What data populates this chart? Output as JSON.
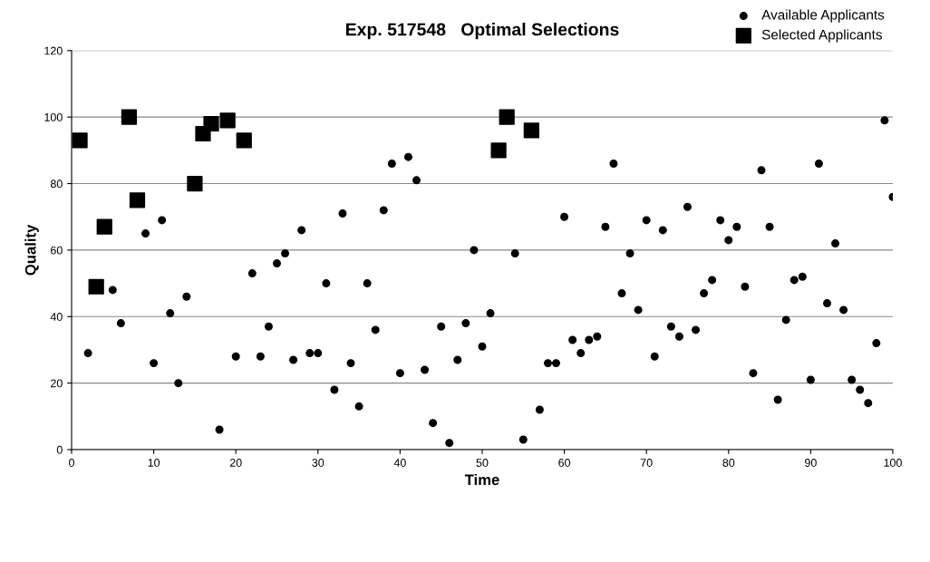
{
  "chart_data": {
    "type": "scatter",
    "title": "Exp. 517548   Optimal Selections",
    "xlabel": "Time",
    "ylabel": "Quality",
    "xlim": [
      0,
      100
    ],
    "ylim": [
      0,
      120
    ],
    "xticks": [
      0,
      10,
      20,
      30,
      40,
      50,
      60,
      70,
      80,
      90,
      100
    ],
    "yticks": [
      0,
      20,
      40,
      60,
      80,
      100,
      120
    ],
    "grid": "y",
    "legend": "top right",
    "series": [
      {
        "name": "Available Applicants",
        "color": "#000000",
        "marker": "circle",
        "x": [
          2,
          5,
          6,
          9,
          10,
          11,
          12,
          13,
          14,
          18,
          20,
          22,
          23,
          24,
          25,
          26,
          27,
          28,
          29,
          30,
          31,
          32,
          33,
          34,
          35,
          36,
          37,
          38,
          39,
          40,
          41,
          42,
          43,
          44,
          45,
          46,
          47,
          48,
          49,
          50,
          51,
          54,
          55,
          57,
          58,
          59,
          60,
          61,
          62,
          63,
          64,
          65,
          66,
          67,
          68,
          69,
          70,
          71,
          72,
          73,
          74,
          75,
          76,
          77,
          78,
          79,
          80,
          81,
          82,
          83,
          84,
          85,
          86,
          87,
          88,
          89,
          90,
          91,
          92,
          93,
          94,
          95,
          96,
          97,
          98,
          99,
          100
        ],
        "values": [
          29,
          48,
          38,
          65,
          26,
          69,
          41,
          20,
          46,
          6,
          28,
          53,
          28,
          37,
          56,
          59,
          27,
          66,
          29,
          29,
          50,
          18,
          71,
          26,
          13,
          50,
          36,
          72,
          86,
          23,
          88,
          81,
          24,
          8,
          37,
          2,
          27,
          38,
          60,
          31,
          41,
          59,
          3,
          12,
          26,
          26,
          70,
          33,
          29,
          33,
          34,
          67,
          86,
          47,
          59,
          42,
          69,
          28,
          66,
          37,
          34,
          73,
          36,
          47,
          51,
          69,
          63,
          67,
          49,
          23,
          84,
          67,
          15,
          39,
          51,
          52,
          21,
          86,
          44,
          62,
          42,
          21,
          18,
          14,
          32,
          99,
          76
        ]
      },
      {
        "name": "Selected Applicants",
        "color": "#000000",
        "marker": "square",
        "x": [
          1,
          3,
          4,
          7,
          8,
          15,
          16,
          17,
          19,
          21,
          52,
          53,
          56
        ],
        "values": [
          93,
          49,
          67,
          100,
          75,
          80,
          95,
          98,
          99,
          93,
          90,
          100,
          96
        ]
      }
    ]
  }
}
